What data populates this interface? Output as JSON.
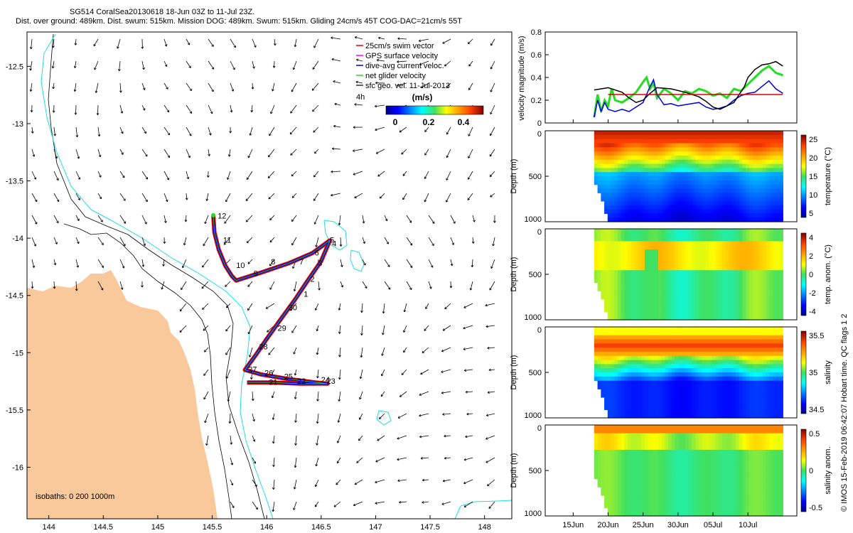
{
  "header": {
    "line1": "SG514 CoralSea20130618 18-Jun 03Z to 11-Jul 23Z.",
    "line2": "Dist. over ground: 489km. Dist. swum: 515km. Mission DOG: 489km. Swum: 515km. Gliding 24cm/s 45T COG-DAC=21cm/s 55T"
  },
  "colors": {
    "land": "#F9C89B",
    "shelf_isobath": "#1EDCE8",
    "swim_vector": "#E00000",
    "dive_avg": "#0000DD",
    "net_velocity": "#22DD22",
    "gps_surface": "#FF00FF"
  },
  "chart_data": [
    {
      "type": "map",
      "title": "Glider track and surface geostrophic velocity",
      "x_ticks": [
        "144",
        "144.5",
        "145",
        "145.5",
        "146",
        "146.5",
        "147",
        "147.5",
        "148"
      ],
      "y_ticks": [
        "-12.5",
        "-13",
        "-13.5",
        "-14",
        "-14.5",
        "-15",
        "-15.5",
        "-16"
      ],
      "xlim": [
        143.8,
        148.25
      ],
      "ylim": [
        -16.45,
        -12.2
      ],
      "legend": [
        {
          "key": "swim",
          "label": "25cm/s swim vector"
        },
        {
          "key": "gps",
          "label": "GPS surface velocity"
        },
        {
          "key": "dive",
          "label": "dive-avg current veloc."
        },
        {
          "key": "net",
          "label": "net glider velocity"
        },
        {
          "key": "geo",
          "label": "sfc geo. vel. 11-Jul-2013"
        }
      ],
      "legend_age": "4h",
      "colorbar": {
        "title": "(m/s)",
        "ticks": [
          "0",
          "0.2",
          "0.4"
        ],
        "range": [
          0,
          0.5
        ]
      },
      "isobaths_label": "isobaths: 0   200  1000m",
      "track_days": [
        {
          "label": "12",
          "lon": 145.55,
          "lat": -13.83
        },
        {
          "label": "11",
          "lon": 145.6,
          "lat": -14.04
        },
        {
          "label": "10",
          "lon": 145.72,
          "lat": -14.26
        },
        {
          "label": "9",
          "lon": 145.88,
          "lat": -14.33
        },
        {
          "label": "8",
          "lon": 146.04,
          "lat": -14.23
        },
        {
          "label": "7",
          "lon": 146.3,
          "lat": -14.23
        },
        {
          "label": "6",
          "lon": 146.44,
          "lat": -14.15
        },
        {
          "label": "5",
          "lon": 146.58,
          "lat": -14.04
        },
        {
          "label": "4",
          "lon": 146.6,
          "lat": -14.07
        },
        {
          "label": "3",
          "lon": 146.47,
          "lat": -14.24
        },
        {
          "label": "2",
          "lon": 146.4,
          "lat": -14.38
        },
        {
          "label": "1",
          "lon": 146.34,
          "lat": -14.51
        },
        {
          "label": "30",
          "lon": 146.2,
          "lat": -14.63
        },
        {
          "label": "29",
          "lon": 146.1,
          "lat": -14.81
        },
        {
          "label": "28",
          "lon": 145.93,
          "lat": -14.97
        },
        {
          "label": "27",
          "lon": 145.83,
          "lat": -15.17
        },
        {
          "label": "26",
          "lon": 145.98,
          "lat": -15.2
        },
        {
          "label": "25",
          "lon": 146.16,
          "lat": -15.23
        },
        {
          "label": "24",
          "lon": 146.5,
          "lat": -15.26
        },
        {
          "label": "23",
          "lon": 146.55,
          "lat": -15.27
        },
        {
          "label": "22",
          "lon": 146.28,
          "lat": -15.27
        },
        {
          "label": "21",
          "lon": 146.02,
          "lat": -15.28
        }
      ],
      "track": [
        [
          145.51,
          -13.8
        ],
        [
          145.52,
          -13.95
        ],
        [
          145.56,
          -14.1
        ],
        [
          145.62,
          -14.24
        ],
        [
          145.68,
          -14.33
        ],
        [
          145.72,
          -14.37
        ],
        [
          145.95,
          -14.3
        ],
        [
          146.2,
          -14.22
        ],
        [
          146.42,
          -14.13
        ],
        [
          146.58,
          -14.02
        ],
        [
          146.5,
          -14.2
        ],
        [
          146.37,
          -14.38
        ],
        [
          146.25,
          -14.55
        ],
        [
          146.12,
          -14.72
        ],
        [
          146.0,
          -14.88
        ],
        [
          145.9,
          -15.02
        ],
        [
          145.8,
          -15.15
        ],
        [
          145.95,
          -15.19
        ],
        [
          146.2,
          -15.23
        ],
        [
          146.45,
          -15.26
        ],
        [
          146.56,
          -15.27
        ],
        [
          146.3,
          -15.27
        ],
        [
          146.05,
          -15.26
        ],
        [
          145.82,
          -15.26
        ]
      ]
    },
    {
      "type": "line",
      "ylabel": "velocity magnitude (m/s)",
      "yticks": [
        "0",
        "0.2",
        "0.4",
        "0.6",
        "0.8"
      ],
      "ylim": [
        0,
        0.8
      ],
      "xlim": [
        0,
        36
      ],
      "x_ticks": [
        {
          "label": "15Jun",
          "day": 4
        },
        {
          "label": "20Jun",
          "day": 9
        },
        {
          "label": "25Jun",
          "day": 14
        },
        {
          "label": "30Jun",
          "day": 19
        },
        {
          "label": "05Jul",
          "day": 24
        },
        {
          "label": "10Jul",
          "day": 29
        }
      ],
      "series": [
        {
          "name": "sfc geo. vel.",
          "color": "#000000",
          "x": [
            7,
            9,
            11,
            12,
            13,
            14,
            15,
            16,
            18,
            20,
            22,
            23,
            24,
            25,
            27,
            28.5,
            29,
            30,
            31,
            32,
            33,
            34
          ],
          "y": [
            0.29,
            0.31,
            0.27,
            0.22,
            0.18,
            0.2,
            0.26,
            0.31,
            0.3,
            0.27,
            0.23,
            0.19,
            0.14,
            0.12,
            0.18,
            0.32,
            0.4,
            0.47,
            0.51,
            0.52,
            0.54,
            0.5
          ]
        },
        {
          "name": "swim vector",
          "color": "#E00000",
          "x": [
            9,
            34
          ],
          "y": [
            0.25,
            0.25
          ]
        },
        {
          "name": "dive-avg current veloc.",
          "color": "#0000DD",
          "x": [
            7,
            7.5,
            8,
            8.5,
            9,
            10,
            11,
            12,
            13,
            14,
            15,
            15.5,
            16,
            17,
            18,
            19,
            20,
            21,
            22,
            23,
            24,
            25,
            26,
            27,
            28,
            29,
            30,
            31,
            32,
            33,
            34
          ],
          "y": [
            0.05,
            0.2,
            0.1,
            0.18,
            0.12,
            0.1,
            0.12,
            0.1,
            0.14,
            0.18,
            0.32,
            0.38,
            0.25,
            0.16,
            0.17,
            0.15,
            0.16,
            0.17,
            0.18,
            0.14,
            0.12,
            0.13,
            0.15,
            0.2,
            0.24,
            0.26,
            0.27,
            0.32,
            0.37,
            0.3,
            0.26
          ]
        },
        {
          "name": "net glider velocity",
          "color": "#22DD22",
          "x": [
            7,
            7.5,
            8,
            8.5,
            9,
            9.5,
            10,
            11,
            12,
            13,
            14,
            14.5,
            15,
            15.5,
            16,
            17,
            18,
            19,
            20,
            21,
            22,
            23,
            24,
            25,
            26,
            27,
            28,
            29,
            30,
            31,
            32,
            33,
            34
          ],
          "y": [
            0.05,
            0.25,
            0.1,
            0.2,
            0.15,
            0.3,
            0.2,
            0.18,
            0.22,
            0.27,
            0.36,
            0.4,
            0.3,
            0.35,
            0.22,
            0.3,
            0.26,
            0.2,
            0.28,
            0.26,
            0.3,
            0.28,
            0.24,
            0.26,
            0.22,
            0.3,
            0.28,
            0.34,
            0.4,
            0.46,
            0.5,
            0.44,
            0.42
          ]
        }
      ]
    },
    {
      "type": "heatmap",
      "ylabel": "Depth (m)",
      "yticks": [
        "0",
        "500",
        "1000"
      ],
      "colorbar_label": "temperature (°C)",
      "colorbar_ticks": [
        "25",
        "20",
        "15",
        "10",
        "5"
      ],
      "crange": [
        3,
        29
      ],
      "variable": "temperature"
    },
    {
      "type": "heatmap",
      "ylabel": "Depth (m)",
      "yticks": [
        "0",
        "500",
        "1000"
      ],
      "colorbar_label": "temp. anom. (°C)",
      "colorbar_ticks": [
        "4",
        "2",
        "0",
        "-2",
        "-4"
      ],
      "crange": [
        -4,
        4
      ],
      "variable": "temp_anom"
    },
    {
      "type": "heatmap",
      "ylabel": "Depth (m)",
      "yticks": [
        "0",
        "500",
        "1000"
      ],
      "colorbar_label": "salinity",
      "colorbar_ticks": [
        "35.5",
        "35",
        "34.5"
      ],
      "crange": [
        34.3,
        35.8
      ],
      "variable": "salinity"
    },
    {
      "type": "heatmap",
      "ylabel": "Depth (m)",
      "yticks": [
        "0",
        "500",
        "1000"
      ],
      "colorbar_label": "salinity anom.",
      "colorbar_ticks": [
        "0.5",
        "0",
        "-0.5"
      ],
      "crange": [
        -0.55,
        0.55
      ],
      "variable": "sal_anom"
    }
  ],
  "footer": {
    "credit": "© IMOS 15-Feb-2019 06:42:07 Hobart time. QC flags 1  2"
  }
}
